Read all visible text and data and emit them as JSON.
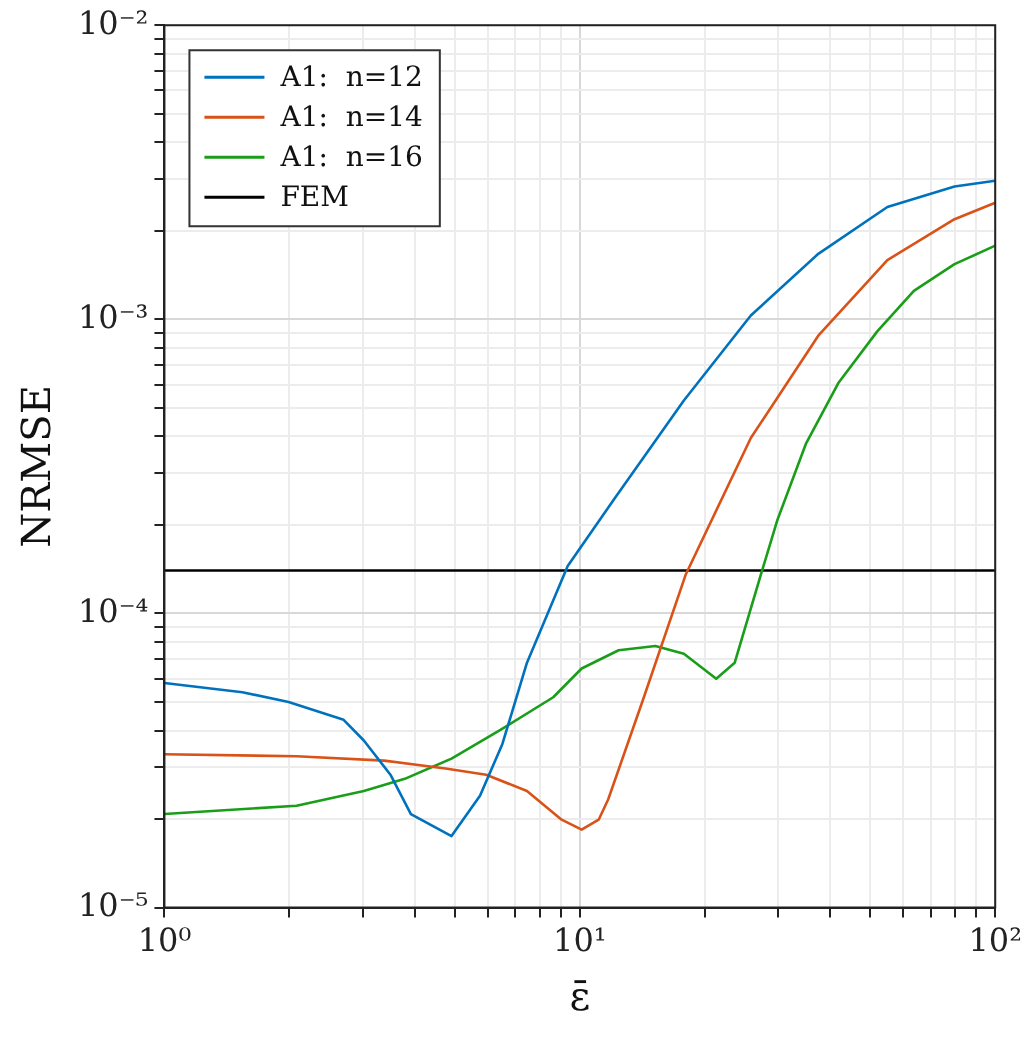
{
  "chart_data": {
    "type": "line",
    "xlabel": "ε̄",
    "ylabel": "NRMSE",
    "log": "xy",
    "grid": true,
    "legend": "top left",
    "marker": "none",
    "line_style": "solid",
    "xlim": [
      1,
      100
    ],
    "ylim": [
      1e-05,
      0.01
    ],
    "xticks": [
      {
        "value": 1,
        "label": "10⁰"
      },
      {
        "value": 2,
        "label": null
      },
      {
        "value": 3,
        "label": null
      },
      {
        "value": 4,
        "label": null
      },
      {
        "value": 5,
        "label": null
      },
      {
        "value": 6,
        "label": null
      },
      {
        "value": 7,
        "label": null
      },
      {
        "value": 8,
        "label": null
      },
      {
        "value": 9,
        "label": null
      },
      {
        "value": 10,
        "label": "10¹"
      },
      {
        "value": 20,
        "label": null
      },
      {
        "value": 30,
        "label": null
      },
      {
        "value": 40,
        "label": null
      },
      {
        "value": 50,
        "label": null
      },
      {
        "value": 60,
        "label": null
      },
      {
        "value": 70,
        "label": null
      },
      {
        "value": 80,
        "label": null
      },
      {
        "value": 90,
        "label": null
      },
      {
        "value": 100,
        "label": "10²"
      }
    ],
    "yticks": [
      {
        "value": 1e-05,
        "label": "10⁻⁵"
      },
      {
        "value": 2e-05,
        "label": null
      },
      {
        "value": 3e-05,
        "label": null
      },
      {
        "value": 4e-05,
        "label": null
      },
      {
        "value": 5e-05,
        "label": null
      },
      {
        "value": 6e-05,
        "label": null
      },
      {
        "value": 7e-05,
        "label": null
      },
      {
        "value": 8e-05,
        "label": null
      },
      {
        "value": 9e-05,
        "label": null
      },
      {
        "value": 0.0001,
        "label": "10⁻⁴"
      },
      {
        "value": 0.0002,
        "label": null
      },
      {
        "value": 0.0003,
        "label": null
      },
      {
        "value": 0.0004,
        "label": null
      },
      {
        "value": 0.0005,
        "label": null
      },
      {
        "value": 0.0006,
        "label": null
      },
      {
        "value": 0.0007,
        "label": null
      },
      {
        "value": 0.0008,
        "label": null
      },
      {
        "value": 0.0009,
        "label": null
      },
      {
        "value": 0.001,
        "label": "10⁻³"
      },
      {
        "value": 0.002,
        "label": null
      },
      {
        "value": 0.003,
        "label": null
      },
      {
        "value": 0.004,
        "label": null
      },
      {
        "value": 0.005,
        "label": null
      },
      {
        "value": 0.006,
        "label": null
      },
      {
        "value": 0.007,
        "label": null
      },
      {
        "value": 0.008,
        "label": null
      },
      {
        "value": 0.009,
        "label": null
      },
      {
        "value": 0.01,
        "label": "10⁻²"
      }
    ],
    "series": [
      {
        "name": "A1:  n=12",
        "color": "#0072bd",
        "x": [
          1,
          1.54,
          1.99,
          2.7,
          3.02,
          3.5,
          3.92,
          4.91,
          5.75,
          6.51,
          7.46,
          9.35,
          12.1,
          17.8,
          25.8,
          37.5,
          55,
          79.8,
          100
        ],
        "values": [
          5.8e-05,
          5.4e-05,
          5e-05,
          4.35e-05,
          3.7e-05,
          2.83e-05,
          2.08e-05,
          1.75e-05,
          2.4e-05,
          3.6e-05,
          6.8e-05,
          0.000145,
          0.000245,
          0.00053,
          0.00103,
          0.00167,
          0.00241,
          0.00283,
          0.00296
        ]
      },
      {
        "name": "A1:  n=14",
        "color": "#d95319",
        "x": [
          1,
          2.08,
          3.38,
          4.75,
          5.95,
          7.46,
          9.04,
          10.1,
          11.1,
          11.7,
          14.2,
          18,
          25.8,
          37.5,
          55,
          79.8,
          100
        ],
        "values": [
          3.32e-05,
          3.27e-05,
          3.16e-05,
          2.97e-05,
          2.83e-05,
          2.49e-05,
          1.99e-05,
          1.84e-05,
          1.99e-05,
          2.33e-05,
          5.1e-05,
          0.000136,
          0.000395,
          0.00088,
          0.00159,
          0.00219,
          0.00249
        ]
      },
      {
        "name": "A1:  n=16",
        "color": "#1a9e1a",
        "x": [
          1,
          2.08,
          3.02,
          3.79,
          4.91,
          6.44,
          8.63,
          10.1,
          12.4,
          15.2,
          17.8,
          21.3,
          23.6,
          27.3,
          29.9,
          35,
          42,
          52,
          63.7,
          79.8,
          100
        ],
        "values": [
          2.08e-05,
          2.22e-05,
          2.49e-05,
          2.74e-05,
          3.21e-05,
          4.02e-05,
          5.19e-05,
          6.5e-05,
          7.5e-05,
          7.75e-05,
          7.3e-05,
          6e-05,
          6.8e-05,
          0.000136,
          0.000208,
          0.000377,
          0.00061,
          0.00091,
          0.00125,
          0.00154,
          0.00178
        ]
      },
      {
        "name": "FEM",
        "color": "#000000",
        "x": [
          1,
          100
        ],
        "values": [
          0.00014,
          0.00014
        ]
      }
    ]
  }
}
